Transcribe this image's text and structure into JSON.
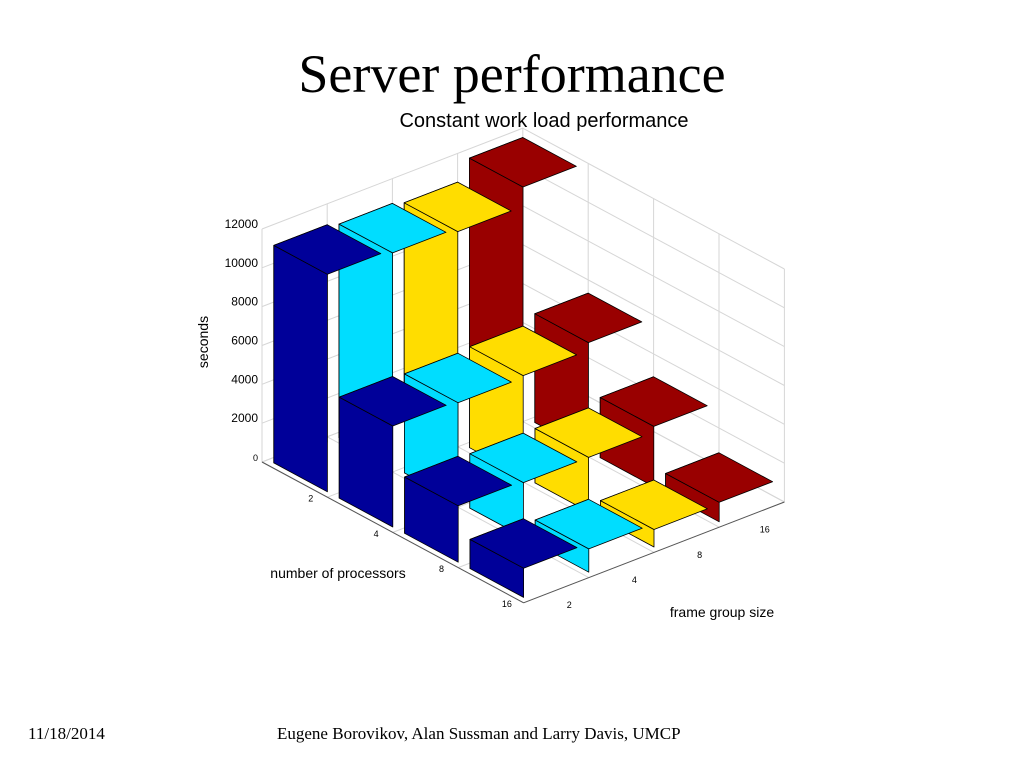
{
  "slide": {
    "title": "Server performance",
    "date": "11/18/2014",
    "authors": "Eugene Borovikov, Alan Sussman and Larry Davis, UMCP"
  },
  "chart_data": {
    "type": "bar3d",
    "title": "Constant work load performance",
    "zlabel": "seconds",
    "xlabel": "number of processors",
    "ylabel": "frame group size",
    "x_ticks": [
      "2",
      "4",
      "8",
      "16"
    ],
    "y_ticks": [
      "2",
      "4",
      "8",
      "16"
    ],
    "z_ticks": [
      "0",
      "2000",
      "4000",
      "6000",
      "8000",
      "10000",
      "12000"
    ],
    "zlim": [
      0,
      12000
    ],
    "grid": true,
    "series": [
      {
        "frame_group_size": "2",
        "color": "#000099",
        "values": [
          11200,
          5200,
          2900,
          1500
        ]
      },
      {
        "frame_group_size": "4",
        "color": "#00DDFF",
        "values": [
          11000,
          5100,
          2800,
          1200
        ]
      },
      {
        "frame_group_size": "8",
        "color": "#FFDD00",
        "values": [
          10800,
          5200,
          2800,
          900
        ]
      },
      {
        "frame_group_size": "16",
        "color": "#990000",
        "values": [
          11800,
          5600,
          3100,
          1000
        ]
      }
    ]
  }
}
